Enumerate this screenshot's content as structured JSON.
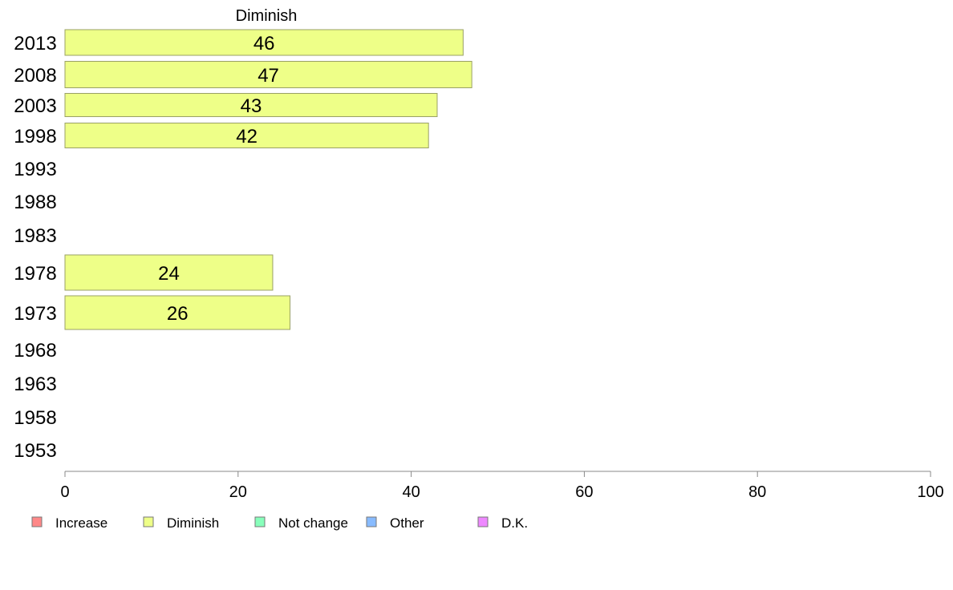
{
  "chart_data": {
    "type": "bar",
    "orientation": "horizontal",
    "title": "Diminish",
    "categories": [
      "2013",
      "2008",
      "2003",
      "1998",
      "1993",
      "1988",
      "1983",
      "1978",
      "1973",
      "1968",
      "1963",
      "1958",
      "1953"
    ],
    "series": [
      {
        "name": "Diminish",
        "color": "#eeff88",
        "values": [
          46,
          47,
          43,
          42,
          null,
          null,
          null,
          24,
          26,
          null,
          null,
          null,
          null
        ]
      }
    ],
    "xlim": [
      0,
      100
    ],
    "xticks": [
      0,
      20,
      40,
      60,
      80,
      100
    ],
    "grid": false,
    "legend": {
      "placement": "bottom",
      "entries": [
        {
          "label": "Increase",
          "color": "#ff8888"
        },
        {
          "label": "Diminish",
          "color": "#eeff88"
        },
        {
          "label": "Not change",
          "color": "#88ffbb"
        },
        {
          "label": "Other",
          "color": "#88bbff"
        },
        {
          "label": "D.K.",
          "color": "#ee88ff"
        }
      ]
    }
  }
}
